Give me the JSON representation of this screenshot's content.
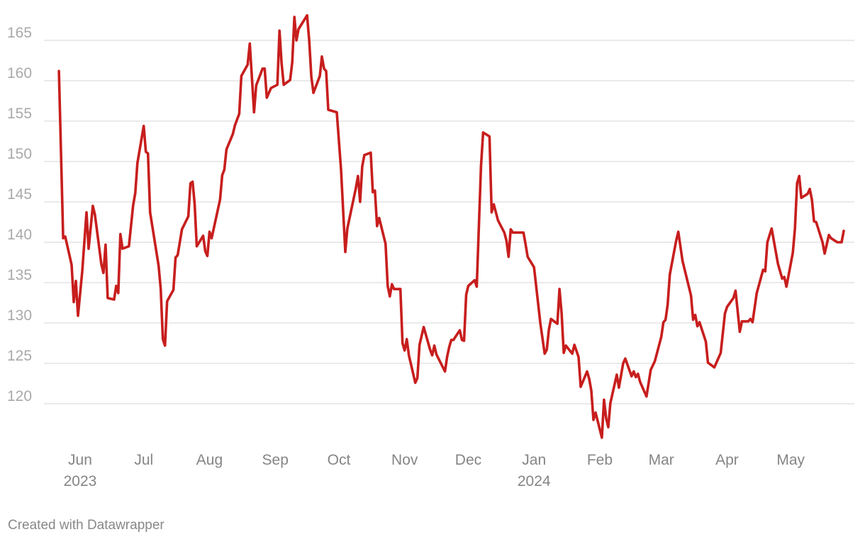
{
  "footer": {
    "credit": "Created with Datawrapper"
  },
  "chart_data": {
    "type": "line",
    "title": "",
    "xlabel": "",
    "ylabel": "",
    "ylim": [
      115,
      168
    ],
    "y_ticks": [
      120,
      125,
      130,
      135,
      140,
      145,
      150,
      155,
      160,
      165
    ],
    "x_ticks": [
      {
        "date": "2023-06-01",
        "label": "Jun",
        "year": "2023"
      },
      {
        "date": "2023-07-01",
        "label": "Jul",
        "year": ""
      },
      {
        "date": "2023-08-01",
        "label": "Aug",
        "year": ""
      },
      {
        "date": "2023-09-01",
        "label": "Sep",
        "year": ""
      },
      {
        "date": "2023-10-01",
        "label": "Oct",
        "year": ""
      },
      {
        "date": "2023-11-01",
        "label": "Nov",
        "year": ""
      },
      {
        "date": "2023-12-01",
        "label": "Dec",
        "year": ""
      },
      {
        "date": "2024-01-01",
        "label": "Jan",
        "year": "2024"
      },
      {
        "date": "2024-02-01",
        "label": "Feb",
        "year": ""
      },
      {
        "date": "2024-03-01",
        "label": "Mar",
        "year": ""
      },
      {
        "date": "2024-04-01",
        "label": "Apr",
        "year": ""
      },
      {
        "date": "2024-05-01",
        "label": "May",
        "year": ""
      }
    ],
    "grid": "horizontal",
    "line_color": "#c71e1d",
    "series": [
      {
        "points": [
          [
            "2023-05-22",
            161.2
          ],
          [
            "2023-05-24",
            140.5
          ],
          [
            "2023-05-25",
            140.7
          ],
          [
            "2023-05-28",
            137.2
          ],
          [
            "2023-05-29",
            132.6
          ],
          [
            "2023-05-30",
            135.2
          ],
          [
            "2023-05-31",
            130.9
          ],
          [
            "2023-06-02",
            136.4
          ],
          [
            "2023-06-04",
            143.7
          ],
          [
            "2023-06-05",
            139.2
          ],
          [
            "2023-06-07",
            144.5
          ],
          [
            "2023-06-08",
            143.4
          ],
          [
            "2023-06-11",
            137.3
          ],
          [
            "2023-06-12",
            136.2
          ],
          [
            "2023-06-13",
            139.7
          ],
          [
            "2023-06-14",
            133.1
          ],
          [
            "2023-06-17",
            132.9
          ],
          [
            "2023-06-18",
            134.6
          ],
          [
            "2023-06-19",
            133.7
          ],
          [
            "2023-06-20",
            141
          ],
          [
            "2023-06-21",
            139.2
          ],
          [
            "2023-06-24",
            139.5
          ],
          [
            "2023-06-26",
            144.6
          ],
          [
            "2023-06-27",
            146.1
          ],
          [
            "2023-06-28",
            149.8
          ],
          [
            "2023-07-01",
            154.4
          ],
          [
            "2023-07-02",
            151.2
          ],
          [
            "2023-07-03",
            151
          ],
          [
            "2023-07-04",
            143.7
          ],
          [
            "2023-07-08",
            137.1
          ],
          [
            "2023-07-09",
            134.2
          ],
          [
            "2023-07-10",
            128
          ],
          [
            "2023-07-11",
            127.2
          ],
          [
            "2023-07-12",
            132.7
          ],
          [
            "2023-07-15",
            134.1
          ],
          [
            "2023-07-16",
            138.1
          ],
          [
            "2023-07-17",
            138.4
          ],
          [
            "2023-07-19",
            141.6
          ],
          [
            "2023-07-22",
            143.2
          ],
          [
            "2023-07-23",
            147.3
          ],
          [
            "2023-07-24",
            147.5
          ],
          [
            "2023-07-25",
            144.8
          ],
          [
            "2023-07-26",
            139.5
          ],
          [
            "2023-07-29",
            140.8
          ],
          [
            "2023-07-30",
            138.9
          ],
          [
            "2023-07-31",
            138.3
          ],
          [
            "2023-08-01",
            141.3
          ],
          [
            "2023-08-02",
            140.5
          ],
          [
            "2023-08-06",
            145.3
          ],
          [
            "2023-08-07",
            148.3
          ],
          [
            "2023-08-08",
            149
          ],
          [
            "2023-08-09",
            151.5
          ],
          [
            "2023-08-12",
            153.4
          ],
          [
            "2023-08-13",
            154.5
          ],
          [
            "2023-08-15",
            155.9
          ],
          [
            "2023-08-16",
            160.6
          ],
          [
            "2023-08-19",
            162
          ],
          [
            "2023-08-20",
            164.6
          ],
          [
            "2023-08-21",
            160.4
          ],
          [
            "2023-08-22",
            156.1
          ],
          [
            "2023-08-23",
            159.4
          ],
          [
            "2023-08-26",
            161.5
          ],
          [
            "2023-08-27",
            161.5
          ],
          [
            "2023-08-28",
            157.9
          ],
          [
            "2023-08-30",
            159.1
          ],
          [
            "2023-09-02",
            159.5
          ],
          [
            "2023-09-03",
            166.2
          ],
          [
            "2023-09-04",
            162.1
          ],
          [
            "2023-09-05",
            159.5
          ],
          [
            "2023-09-08",
            160.1
          ],
          [
            "2023-09-09",
            162.3
          ],
          [
            "2023-09-10",
            167.9
          ],
          [
            "2023-09-11",
            165
          ],
          [
            "2023-09-12",
            166.4
          ],
          [
            "2023-09-16",
            168.1
          ],
          [
            "2023-09-17",
            165
          ],
          [
            "2023-09-18",
            160.5
          ],
          [
            "2023-09-19",
            158.5
          ],
          [
            "2023-09-22",
            160.6
          ],
          [
            "2023-09-23",
            163
          ],
          [
            "2023-09-24",
            161.5
          ],
          [
            "2023-09-25",
            161.2
          ],
          [
            "2023-09-26",
            156.4
          ],
          [
            "2023-09-30",
            156.1
          ],
          [
            "2023-10-02",
            149
          ],
          [
            "2023-10-04",
            138.8
          ],
          [
            "2023-10-05",
            141.7
          ],
          [
            "2023-10-09",
            146.7
          ],
          [
            "2023-10-10",
            148.2
          ],
          [
            "2023-10-11",
            145
          ],
          [
            "2023-10-12",
            149.4
          ],
          [
            "2023-10-13",
            150.8
          ],
          [
            "2023-10-16",
            151.1
          ],
          [
            "2023-10-17",
            146.2
          ],
          [
            "2023-10-18",
            146.4
          ],
          [
            "2023-10-19",
            142
          ],
          [
            "2023-10-20",
            143
          ],
          [
            "2023-10-23",
            139.8
          ],
          [
            "2023-10-24",
            134.6
          ],
          [
            "2023-10-25",
            133.3
          ],
          [
            "2023-10-26",
            134.8
          ],
          [
            "2023-10-27",
            134.2
          ],
          [
            "2023-10-30",
            134.2
          ],
          [
            "2023-10-31",
            127.5
          ],
          [
            "2023-11-01",
            126.6
          ],
          [
            "2023-11-02",
            128
          ],
          [
            "2023-11-03",
            126
          ],
          [
            "2023-11-06",
            122.6
          ],
          [
            "2023-11-07",
            123.2
          ],
          [
            "2023-11-08",
            127.3
          ],
          [
            "2023-11-10",
            129.5
          ],
          [
            "2023-11-13",
            126.7
          ],
          [
            "2023-11-14",
            126
          ],
          [
            "2023-11-15",
            127.2
          ],
          [
            "2023-11-16",
            126.1
          ],
          [
            "2023-11-20",
            124
          ],
          [
            "2023-11-21",
            125.8
          ],
          [
            "2023-11-22",
            127
          ],
          [
            "2023-11-23",
            127.9
          ],
          [
            "2023-11-24",
            127.9
          ],
          [
            "2023-11-27",
            129.1
          ],
          [
            "2023-11-28",
            127.9
          ],
          [
            "2023-11-29",
            127.8
          ],
          [
            "2023-11-30",
            133.5
          ],
          [
            "2023-12-01",
            134.6
          ],
          [
            "2023-12-04",
            135.3
          ],
          [
            "2023-12-05",
            134.5
          ],
          [
            "2023-12-07",
            149.4
          ],
          [
            "2023-12-08",
            153.6
          ],
          [
            "2023-12-11",
            153.1
          ],
          [
            "2023-12-12",
            143.7
          ],
          [
            "2023-12-13",
            144.7
          ],
          [
            "2023-12-15",
            142.7
          ],
          [
            "2023-12-18",
            141.2
          ],
          [
            "2023-12-19",
            140.2
          ],
          [
            "2023-12-20",
            138.2
          ],
          [
            "2023-12-21",
            141.6
          ],
          [
            "2023-12-22",
            141.2
          ],
          [
            "2023-12-25",
            141.2
          ],
          [
            "2023-12-27",
            141.2
          ],
          [
            "2023-12-28",
            139.8
          ],
          [
            "2023-12-29",
            138.2
          ],
          [
            "2024-01-01",
            136.9
          ],
          [
            "2024-01-04",
            129.9
          ],
          [
            "2024-01-06",
            126.2
          ],
          [
            "2024-01-07",
            126.7
          ],
          [
            "2024-01-08",
            129.2
          ],
          [
            "2024-01-09",
            130.5
          ],
          [
            "2024-01-12",
            129.9
          ],
          [
            "2024-01-13",
            134.2
          ],
          [
            "2024-01-14",
            131.2
          ],
          [
            "2024-01-15",
            126.3
          ],
          [
            "2024-01-16",
            127.2
          ],
          [
            "2024-01-19",
            126.2
          ],
          [
            "2024-01-20",
            127.3
          ],
          [
            "2024-01-22",
            125.8
          ],
          [
            "2024-01-23",
            122.1
          ],
          [
            "2024-01-26",
            124
          ],
          [
            "2024-01-27",
            123.1
          ],
          [
            "2024-01-28",
            121.6
          ],
          [
            "2024-01-29",
            118
          ],
          [
            "2024-01-30",
            118.9
          ],
          [
            "2024-02-02",
            115.8
          ],
          [
            "2024-02-03",
            120.5
          ],
          [
            "2024-02-04",
            118.2
          ],
          [
            "2024-02-05",
            117.1
          ],
          [
            "2024-02-06",
            120.1
          ],
          [
            "2024-02-09",
            123.6
          ],
          [
            "2024-02-10",
            122
          ],
          [
            "2024-02-12",
            125
          ],
          [
            "2024-02-13",
            125.6
          ],
          [
            "2024-02-16",
            123.4
          ],
          [
            "2024-02-17",
            124
          ],
          [
            "2024-02-18",
            123.3
          ],
          [
            "2024-02-19",
            123.7
          ],
          [
            "2024-02-20",
            122.7
          ],
          [
            "2024-02-23",
            120.9
          ],
          [
            "2024-02-25",
            124.2
          ],
          [
            "2024-02-27",
            125.3
          ],
          [
            "2024-03-01",
            128.3
          ],
          [
            "2024-03-02",
            130.1
          ],
          [
            "2024-03-03",
            130.4
          ],
          [
            "2024-03-04",
            132.3
          ],
          [
            "2024-03-05",
            136
          ],
          [
            "2024-03-08",
            140.2
          ],
          [
            "2024-03-09",
            141.3
          ],
          [
            "2024-03-11",
            137.7
          ],
          [
            "2024-03-15",
            133.4
          ],
          [
            "2024-03-16",
            130.4
          ],
          [
            "2024-03-17",
            131
          ],
          [
            "2024-03-18",
            129.6
          ],
          [
            "2024-03-19",
            130.1
          ],
          [
            "2024-03-22",
            127.7
          ],
          [
            "2024-03-23",
            125.1
          ],
          [
            "2024-03-25",
            124.7
          ],
          [
            "2024-03-26",
            124.5
          ],
          [
            "2024-03-29",
            126.3
          ],
          [
            "2024-03-31",
            131.2
          ],
          [
            "2024-04-01",
            132
          ],
          [
            "2024-04-04",
            133.1
          ],
          [
            "2024-04-05",
            134
          ],
          [
            "2024-04-06",
            131.5
          ],
          [
            "2024-04-07",
            128.9
          ],
          [
            "2024-04-08",
            130.2
          ],
          [
            "2024-04-11",
            130.2
          ],
          [
            "2024-04-12",
            130.5
          ],
          [
            "2024-04-13",
            130.1
          ],
          [
            "2024-04-15",
            133.7
          ],
          [
            "2024-04-18",
            136.6
          ],
          [
            "2024-04-19",
            136.4
          ],
          [
            "2024-04-20",
            140
          ],
          [
            "2024-04-22",
            141.7
          ],
          [
            "2024-04-25",
            137.3
          ],
          [
            "2024-04-27",
            135.5
          ],
          [
            "2024-04-28",
            135.7
          ],
          [
            "2024-04-29",
            134.5
          ],
          [
            "2024-05-02",
            138.7
          ],
          [
            "2024-05-03",
            141.7
          ],
          [
            "2024-05-04",
            147.3
          ],
          [
            "2024-05-05",
            148.2
          ],
          [
            "2024-05-06",
            145.5
          ],
          [
            "2024-05-09",
            146
          ],
          [
            "2024-05-10",
            146.6
          ],
          [
            "2024-05-11",
            145.3
          ],
          [
            "2024-05-12",
            142.6
          ],
          [
            "2024-05-13",
            142.5
          ],
          [
            "2024-05-16",
            140
          ],
          [
            "2024-05-17",
            138.6
          ],
          [
            "2024-05-19",
            140.9
          ],
          [
            "2024-05-20",
            140.5
          ],
          [
            "2024-05-23",
            140
          ],
          [
            "2024-05-25",
            140
          ],
          [
            "2024-05-26",
            141.4
          ]
        ]
      }
    ]
  }
}
